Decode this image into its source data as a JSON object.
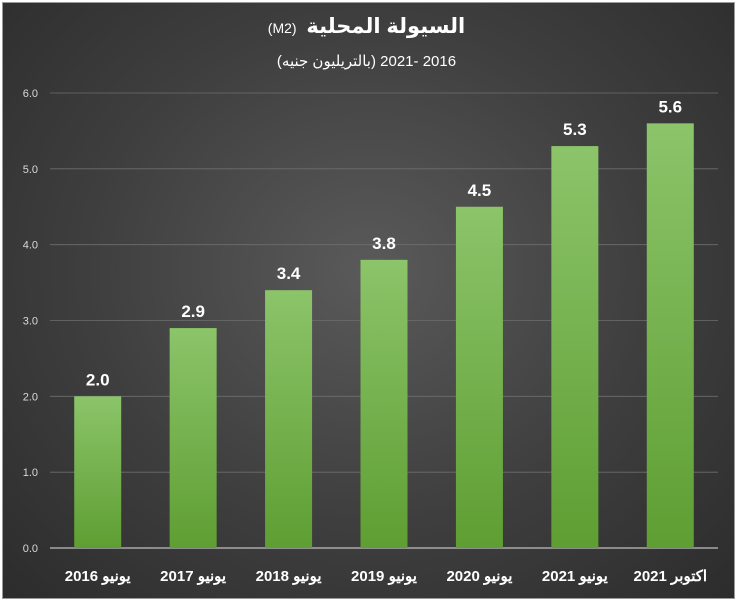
{
  "chart_data": {
    "type": "bar",
    "title": "السيولة المحلية",
    "title_unit": "(M2)",
    "subtitle": "2016 -2021 (بالتريليون جنيه)",
    "categories": [
      "يونيو 2016",
      "يونيو 2017",
      "يونيو 2018",
      "يونيو 2019",
      "يونيو 2020",
      "يونيو 2021",
      "اكتوبر 2021"
    ],
    "values": [
      2.0,
      2.9,
      3.4,
      3.8,
      4.5,
      5.3,
      5.6
    ],
    "value_labels": [
      "2.0",
      "2.9",
      "3.4",
      "3.8",
      "4.5",
      "5.3",
      "5.6"
    ],
    "yticks": [
      "0.0",
      "1.0",
      "2.0",
      "3.0",
      "4.0",
      "5.0",
      "6.0"
    ],
    "ylim": [
      0,
      6
    ],
    "grid": true,
    "bar_color_top": "#8cc46a",
    "bar_color_bottom": "#5e9e32"
  }
}
